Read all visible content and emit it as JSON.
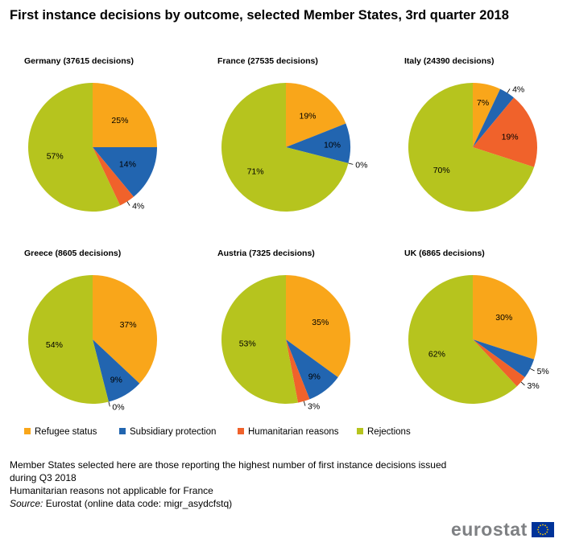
{
  "title": "First instance decisions by outcome, selected Member States, 3rd quarter 2018",
  "colors": {
    "Refugee status": "#f9a61a",
    "Subsidiary protection": "#2265b0",
    "Humanitarian reasons": "#f0622b",
    "Rejections": "#b6c41e"
  },
  "chart_data": [
    {
      "type": "pie",
      "title": "Germany (37615 decisions)",
      "categories": [
        "Refugee status",
        "Subsidiary protection",
        "Humanitarian reasons",
        "Rejections"
      ],
      "values": [
        25,
        14,
        4,
        57
      ],
      "labels": [
        "25%",
        "14%",
        "4%",
        "57%"
      ]
    },
    {
      "type": "pie",
      "title": "France (27535 decisions)",
      "categories": [
        "Refugee status",
        "Subsidiary protection",
        "Humanitarian reasons",
        "Rejections"
      ],
      "values": [
        19,
        10,
        0,
        71
      ],
      "labels": [
        "19%",
        "10%",
        "0%",
        "71%"
      ]
    },
    {
      "type": "pie",
      "title": "Italy (24390 decisions)",
      "categories": [
        "Refugee status",
        "Subsidiary protection",
        "Humanitarian reasons",
        "Rejections"
      ],
      "values": [
        7,
        4,
        19,
        70
      ],
      "labels": [
        "7%",
        "4%",
        "19%",
        "70%"
      ]
    },
    {
      "type": "pie",
      "title": "Greece (8605 decisions)",
      "categories": [
        "Refugee status",
        "Subsidiary protection",
        "Humanitarian reasons",
        "Rejections"
      ],
      "values": [
        37,
        9,
        0,
        54
      ],
      "labels": [
        "37%",
        "9%",
        "0%",
        "54%"
      ]
    },
    {
      "type": "pie",
      "title": "Austria (7325 decisions)",
      "categories": [
        "Refugee status",
        "Subsidiary protection",
        "Humanitarian reasons",
        "Rejections"
      ],
      "values": [
        35,
        9,
        3,
        53
      ],
      "labels": [
        "35%",
        "9%",
        "3%",
        "53%"
      ]
    },
    {
      "type": "pie",
      "title": "UK (6865 decisions)",
      "categories": [
        "Refugee status",
        "Subsidiary protection",
        "Humanitarian reasons",
        "Rejections"
      ],
      "values": [
        30,
        5,
        3,
        62
      ],
      "labels": [
        "30%",
        "5%",
        "3%",
        "62%"
      ]
    }
  ],
  "legend": {
    "items": [
      "Refugee  status",
      "Subsidiary protection",
      "Humanitarian reasons",
      "Rejections"
    ],
    "placement": "bottom"
  },
  "notes": {
    "line1": "Member States selected here are those reporting the highest number of first instance decisions issued",
    "line2": "during Q3 2018",
    "line3": "Humanitarian reasons not applicable for France",
    "source_label": "Source:",
    "source_text": " Eurostat (online data code: migr_asydcfstq)"
  },
  "logo": {
    "text": "eurostat",
    "flag_icon": "eu-flag-icon"
  }
}
